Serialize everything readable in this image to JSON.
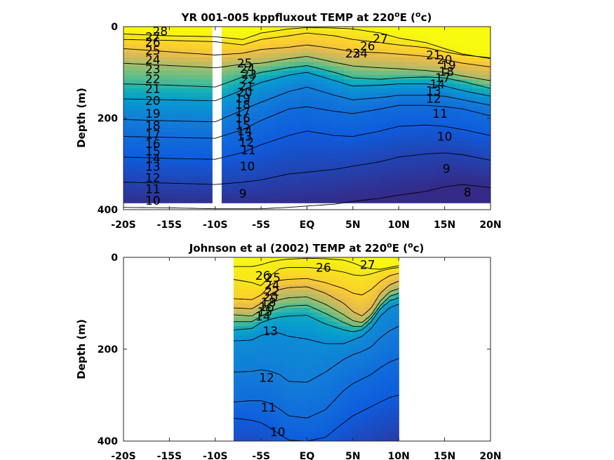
{
  "chart_data": [
    {
      "type": "heatmap",
      "title": "YR 001-005 kppfluxout TEMP at 220",
      "title_sup": "o",
      "title_suffix": "E (",
      "title_unit_sup": "o",
      "title_unit": "c)",
      "ylabel": "Depth (m)",
      "xlabel": "",
      "xlim": [
        -20,
        20
      ],
      "ylim": [
        400,
        0
      ],
      "xticks": [
        -20,
        -15,
        -10,
        -5,
        0,
        5,
        10,
        15,
        20
      ],
      "xtick_labels": [
        "-20S",
        "-15S",
        "-10S",
        "-5S",
        "EQ",
        "5N",
        "10N",
        "15N",
        "20N"
      ],
      "yticks": [
        0,
        200,
        400
      ],
      "ytick_labels": [
        "0",
        "200",
        "400"
      ],
      "data_extent": {
        "lat": [
          -20,
          20
        ],
        "depth": [
          0,
          385
        ]
      },
      "gap_lat": [
        -10.3,
        -9.3
      ],
      "colormap": "parula",
      "color_range": [
        8,
        28
      ],
      "contour_levels": [
        8,
        9,
        10,
        11,
        12,
        13,
        14,
        15,
        16,
        17,
        18,
        19,
        20,
        21,
        22,
        23,
        24,
        25,
        26,
        27,
        28
      ],
      "isotherm_depth_profiles": {
        "lat": [
          -20,
          -15,
          -10,
          -7,
          -5,
          -2,
          0,
          3,
          5,
          8,
          10,
          13,
          15,
          17,
          20
        ],
        "levels": [
          {
            "T": 27,
            "depth": [
              16,
              20,
              22,
              28,
              14,
              5,
              2,
              3,
              5,
              14,
              25,
              35,
              48,
              60,
              70
            ]
          },
          {
            "T": 25,
            "depth": [
              28,
              30,
              33,
              40,
              28,
              20,
              14,
              20,
              28,
              35,
              40,
              46,
              55,
              62,
              68
            ]
          },
          {
            "T": 23,
            "depth": [
              48,
              55,
              62,
              58,
              50,
              45,
              40,
              48,
              55,
              57,
              60,
              65,
              72,
              80,
              88
            ]
          },
          {
            "T": 20,
            "depth": [
              80,
              85,
              90,
              82,
              80,
              70,
              65,
              78,
              86,
              90,
              92,
              96,
              100,
              108,
              118
            ]
          },
          {
            "T": 17,
            "depth": [
              125,
              128,
              132,
              110,
              100,
              90,
              85,
              100,
              112,
              115,
              112,
              110,
              112,
              120,
              135
            ]
          },
          {
            "T": 14,
            "depth": [
              158,
              160,
              162,
              138,
              122,
              106,
              100,
              118,
              130,
              128,
              125,
              125,
              130,
              140,
              152
            ]
          },
          {
            "T": 12,
            "depth": [
              203,
              206,
              208,
              182,
              165,
              142,
              132,
              150,
              160,
              155,
              150,
              150,
              152,
              160,
              172
            ]
          },
          {
            "T": 11,
            "depth": [
              240,
              242,
              244,
              225,
              205,
              180,
              175,
              185,
              190,
              180,
              172,
              172,
              175,
              180,
              195
            ]
          },
          {
            "T": 10,
            "depth": [
              285,
              288,
              290,
              275,
              258,
              238,
              228,
              238,
              240,
              228,
              218,
              215,
              218,
              225,
              238
            ]
          },
          {
            "T": 9,
            "depth": [
              340,
              342,
              345,
              340,
              335,
              322,
              318,
              312,
              305,
              295,
              285,
              278,
              276,
              280,
              292
            ]
          },
          {
            "T": 8,
            "depth": [
              395,
              396,
              398,
              398,
              398,
              395,
              392,
              388,
              382,
              375,
              368,
              360,
              350,
              345,
              352
            ]
          }
        ]
      },
      "contour_labels": [
        {
          "text": "28",
          "lat": -16.0,
          "depth": 10
        },
        {
          "text": "27",
          "lat": -16.8,
          "depth": 22
        },
        {
          "text": "26",
          "lat": -16.8,
          "depth": 34
        },
        {
          "text": "25",
          "lat": -16.8,
          "depth": 52
        },
        {
          "text": "24",
          "lat": -16.8,
          "depth": 72
        },
        {
          "text": "23",
          "lat": -16.8,
          "depth": 93
        },
        {
          "text": "22",
          "lat": -16.8,
          "depth": 114
        },
        {
          "text": "21",
          "lat": -16.8,
          "depth": 136
        },
        {
          "text": "20",
          "lat": -16.8,
          "depth": 162
        },
        {
          "text": "19",
          "lat": -16.8,
          "depth": 190
        },
        {
          "text": "18",
          "lat": -16.8,
          "depth": 216
        },
        {
          "text": "17",
          "lat": -16.8,
          "depth": 236
        },
        {
          "text": "16",
          "lat": -16.8,
          "depth": 256
        },
        {
          "text": "15",
          "lat": -16.8,
          "depth": 272
        },
        {
          "text": "14",
          "lat": -16.8,
          "depth": 288
        },
        {
          "text": "13",
          "lat": -16.8,
          "depth": 306
        },
        {
          "text": "12",
          "lat": -16.8,
          "depth": 330
        },
        {
          "text": "11",
          "lat": -16.8,
          "depth": 355
        },
        {
          "text": "10",
          "lat": -16.8,
          "depth": 380
        },
        {
          "text": "25",
          "lat": -6.8,
          "depth": 80
        },
        {
          "text": "24",
          "lat": -6.5,
          "depth": 92
        },
        {
          "text": "23",
          "lat": -6.3,
          "depth": 104
        },
        {
          "text": "22",
          "lat": -6.4,
          "depth": 116
        },
        {
          "text": "21",
          "lat": -6.6,
          "depth": 130
        },
        {
          "text": "20",
          "lat": -6.8,
          "depth": 143
        },
        {
          "text": "19",
          "lat": -7.0,
          "depth": 156
        },
        {
          "text": "18",
          "lat": -7.0,
          "depth": 170
        },
        {
          "text": "17",
          "lat": -7.0,
          "depth": 186
        },
        {
          "text": "16",
          "lat": -7.0,
          "depth": 200
        },
        {
          "text": "15",
          "lat": -7.0,
          "depth": 215
        },
        {
          "text": "14",
          "lat": -6.8,
          "depth": 228
        },
        {
          "text": "13",
          "lat": -6.8,
          "depth": 240
        },
        {
          "text": "12",
          "lat": -6.6,
          "depth": 252
        },
        {
          "text": "11",
          "lat": -6.4,
          "depth": 270
        },
        {
          "text": "10",
          "lat": -6.5,
          "depth": 305
        },
        {
          "text": "9",
          "lat": -7.0,
          "depth": 365
        },
        {
          "text": "27",
          "lat": 8.0,
          "depth": 26
        },
        {
          "text": "26",
          "lat": 6.6,
          "depth": 42
        },
        {
          "text": "24",
          "lat": 5.8,
          "depth": 58
        },
        {
          "text": "23",
          "lat": 5.0,
          "depth": 58
        },
        {
          "text": "21",
          "lat": 13.8,
          "depth": 62
        },
        {
          "text": "20",
          "lat": 15.0,
          "depth": 72
        },
        {
          "text": "19",
          "lat": 15.4,
          "depth": 84
        },
        {
          "text": "18",
          "lat": 15.2,
          "depth": 98
        },
        {
          "text": "17",
          "lat": 14.8,
          "depth": 112
        },
        {
          "text": "14",
          "lat": 14.2,
          "depth": 126
        },
        {
          "text": "13",
          "lat": 13.8,
          "depth": 140
        },
        {
          "text": "12",
          "lat": 13.8,
          "depth": 157
        },
        {
          "text": "11",
          "lat": 14.5,
          "depth": 190
        },
        {
          "text": "10",
          "lat": 15.0,
          "depth": 240
        },
        {
          "text": "9",
          "lat": 15.2,
          "depth": 310
        },
        {
          "text": "8",
          "lat": 17.5,
          "depth": 362
        }
      ]
    },
    {
      "type": "heatmap",
      "title": "Johnson et al (2002) TEMP at 220",
      "title_sup": "o",
      "title_suffix": "E (",
      "title_unit_sup": "o",
      "title_unit": "c)",
      "ylabel": "Depth (m)",
      "xlabel": "",
      "xlim": [
        -20,
        20
      ],
      "ylim": [
        400,
        0
      ],
      "xticks": [
        -20,
        -15,
        -10,
        -5,
        0,
        5,
        10,
        15,
        20
      ],
      "xtick_labels": [
        "-20S",
        "-15S",
        "-10S",
        "-5S",
        "EQ",
        "5N",
        "10N",
        "15N",
        "20N"
      ],
      "yticks": [
        0,
        200,
        400
      ],
      "ytick_labels": [
        "0",
        "200",
        "400"
      ],
      "data_extent": {
        "lat": [
          -8,
          10
        ],
        "depth": [
          0,
          400
        ]
      },
      "colormap": "parula",
      "color_range": [
        8,
        28
      ],
      "contour_levels": [
        10,
        11,
        12,
        13,
        14,
        15,
        16,
        17,
        18,
        19,
        20,
        21,
        22,
        23,
        24,
        25,
        26,
        27
      ],
      "isotherm_depth_profiles": {
        "lat": [
          -8,
          -6,
          -5,
          -4,
          -3,
          -2,
          0,
          2,
          4,
          5,
          6,
          7,
          8,
          9,
          10
        ],
        "levels": [
          {
            "T": 27,
            "depth": [
              20,
              20,
              16,
              10,
              6,
              4,
              2,
              3,
              6,
              12,
              20,
              25,
              26,
              22,
              18
            ]
          },
          {
            "T": 26,
            "depth": [
              48,
              55,
              62,
              40,
              25,
              22,
              22,
              25,
              32,
              38,
              40,
              36,
              30,
              25,
              22
            ]
          },
          {
            "T": 24,
            "depth": [
              90,
              92,
              82,
              60,
              50,
              48,
              46,
              55,
              68,
              78,
              82,
              70,
              52,
              40,
              35
            ]
          },
          {
            "T": 22,
            "depth": [
              110,
              112,
              100,
              80,
              70,
              66,
              64,
              78,
              100,
              118,
              128,
              110,
              78,
              60,
              52
            ]
          },
          {
            "T": 20,
            "depth": [
              125,
              128,
              115,
              100,
              92,
              88,
              86,
              102,
              125,
              138,
              142,
              125,
              95,
              75,
              68
            ]
          },
          {
            "T": 18,
            "depth": [
              140,
              140,
              128,
              118,
              110,
              106,
              104,
              122,
              142,
              150,
              150,
              132,
              105,
              85,
              78
            ]
          },
          {
            "T": 15,
            "depth": [
              158,
              155,
              142,
              135,
              130,
              128,
              126,
              145,
              158,
              162,
              158,
              140,
              112,
              95,
              88
            ]
          },
          {
            "T": 13,
            "depth": [
              182,
              180,
              170,
              165,
              165,
              172,
              178,
              188,
              188,
              180,
              172,
              155,
              128,
              110,
              102
            ]
          },
          {
            "T": 12,
            "depth": [
              250,
              248,
              245,
              248,
              255,
              270,
              272,
              250,
              222,
              212,
              205,
              195,
              175,
              160,
              150
            ]
          },
          {
            "T": 11,
            "depth": [
              315,
              312,
              312,
              318,
              330,
              345,
              350,
              332,
              290,
              275,
              265,
              255,
              240,
              228,
              220
            ]
          },
          {
            "T": 10,
            "depth": [
              350,
              355,
              360,
              372,
              385,
              398,
              400,
              392,
              360,
              345,
              335,
              325,
              315,
              305,
              300
            ]
          }
        ]
      },
      "contour_labels": [
        {
          "text": "27",
          "lat": 6.6,
          "depth": 16
        },
        {
          "text": "26",
          "lat": 1.8,
          "depth": 22
        },
        {
          "text": "26",
          "lat": -4.8,
          "depth": 40
        },
        {
          "text": "25",
          "lat": -3.7,
          "depth": 44
        },
        {
          "text": "24",
          "lat": -3.8,
          "depth": 60
        },
        {
          "text": "22",
          "lat": -3.8,
          "depth": 74
        },
        {
          "text": "20",
          "lat": -4.0,
          "depth": 86
        },
        {
          "text": "18",
          "lat": -4.2,
          "depth": 98
        },
        {
          "text": "16",
          "lat": -4.4,
          "depth": 108
        },
        {
          "text": "15",
          "lat": -4.6,
          "depth": 118
        },
        {
          "text": "14",
          "lat": -4.8,
          "depth": 128
        },
        {
          "text": "13",
          "lat": -4.0,
          "depth": 160
        },
        {
          "text": "12",
          "lat": -4.4,
          "depth": 262
        },
        {
          "text": "11",
          "lat": -4.2,
          "depth": 327
        },
        {
          "text": "10",
          "lat": -3.2,
          "depth": 380
        }
      ]
    }
  ]
}
